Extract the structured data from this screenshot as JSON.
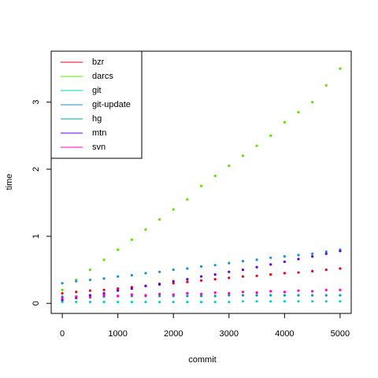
{
  "chart_data": {
    "type": "scatter",
    "xlabel": "commit",
    "ylabel": "time",
    "x": [
      0,
      250,
      500,
      750,
      1000,
      1250,
      1500,
      1750,
      2000,
      2250,
      2500,
      2750,
      3000,
      3250,
      3500,
      3750,
      4000,
      4250,
      4500,
      4750,
      5000
    ],
    "series": [
      {
        "name": "bzr",
        "color": "#e8001c",
        "values": [
          0.15,
          0.17,
          0.19,
          0.2,
          0.22,
          0.24,
          0.26,
          0.28,
          0.3,
          0.32,
          0.34,
          0.36,
          0.38,
          0.4,
          0.41,
          0.43,
          0.45,
          0.46,
          0.48,
          0.5,
          0.52
        ]
      },
      {
        "name": "darcs",
        "color": "#5fe000",
        "values": [
          0.2,
          0.35,
          0.5,
          0.65,
          0.8,
          0.95,
          1.1,
          1.25,
          1.4,
          1.55,
          1.75,
          1.9,
          2.05,
          2.2,
          2.35,
          2.5,
          2.7,
          2.85,
          3.0,
          3.25,
          3.5
        ]
      },
      {
        "name": "git",
        "color": "#00d9c0",
        "values": [
          0.02,
          0.02,
          0.02,
          0.02,
          0.02,
          0.02,
          0.02,
          0.02,
          0.02,
          0.02,
          0.02,
          0.02,
          0.02,
          0.03,
          0.03,
          0.03,
          0.03,
          0.03,
          0.03,
          0.03,
          0.03
        ]
      },
      {
        "name": "git-update",
        "color": "#1f8fd0",
        "values": [
          0.3,
          0.33,
          0.35,
          0.37,
          0.4,
          0.42,
          0.45,
          0.47,
          0.5,
          0.52,
          0.55,
          0.57,
          0.6,
          0.63,
          0.65,
          0.68,
          0.7,
          0.72,
          0.74,
          0.77,
          0.8
        ]
      },
      {
        "name": "hg",
        "color": "#0aa0a0",
        "values": [
          0.1,
          0.1,
          0.1,
          0.1,
          0.11,
          0.11,
          0.11,
          0.11,
          0.11,
          0.11,
          0.11,
          0.11,
          0.12,
          0.12,
          0.12,
          0.12,
          0.12,
          0.12,
          0.12,
          0.12,
          0.12
        ]
      },
      {
        "name": "mtn",
        "color": "#6000e0",
        "values": [
          0.05,
          0.08,
          0.12,
          0.15,
          0.19,
          0.22,
          0.26,
          0.29,
          0.33,
          0.36,
          0.4,
          0.43,
          0.47,
          0.5,
          0.54,
          0.58,
          0.62,
          0.66,
          0.7,
          0.74,
          0.78
        ]
      },
      {
        "name": "svn",
        "color": "#ff00c8",
        "values": [
          0.08,
          0.1,
          0.09,
          0.12,
          0.11,
          0.13,
          0.12,
          0.14,
          0.13,
          0.15,
          0.14,
          0.16,
          0.15,
          0.17,
          0.16,
          0.18,
          0.17,
          0.19,
          0.18,
          0.2,
          0.2
        ]
      }
    ],
    "xlim": [
      -200,
      5200
    ],
    "xticks": [
      0,
      1000,
      2000,
      3000,
      4000,
      5000
    ],
    "ylim": [
      -0.15,
      3.76
    ],
    "yticks": [
      0,
      1,
      2,
      3
    ],
    "grid": false,
    "legend": "top-left"
  }
}
